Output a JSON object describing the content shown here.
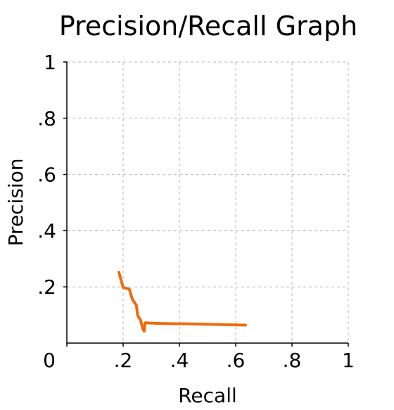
{
  "chart_data": {
    "type": "line",
    "title": "Precision/Recall Graph",
    "xlabel": "Recall",
    "ylabel": "Precision",
    "xlim": [
      0,
      1
    ],
    "ylim": [
      0,
      1
    ],
    "x_ticks": [
      0,
      0.2,
      0.4,
      0.6,
      0.8,
      1
    ],
    "x_tick_labels": [
      "0",
      ".2",
      ".4",
      ".6",
      ".8",
      "1"
    ],
    "y_ticks": [
      0.2,
      0.4,
      0.6,
      0.8,
      1
    ],
    "y_tick_labels": [
      ".2",
      ".4",
      ".6",
      ".8",
      "1"
    ],
    "grid": true,
    "series": [
      {
        "color": "#f06a0c",
        "points": [
          [
            0.185,
            0.252
          ],
          [
            0.2,
            0.198
          ],
          [
            0.222,
            0.192
          ],
          [
            0.233,
            0.155
          ],
          [
            0.247,
            0.135
          ],
          [
            0.252,
            0.097
          ],
          [
            0.262,
            0.082
          ],
          [
            0.27,
            0.05
          ],
          [
            0.275,
            0.042
          ],
          [
            0.278,
            0.072
          ],
          [
            0.33,
            0.07
          ],
          [
            0.45,
            0.068
          ],
          [
            0.55,
            0.066
          ],
          [
            0.635,
            0.064
          ]
        ]
      }
    ]
  }
}
